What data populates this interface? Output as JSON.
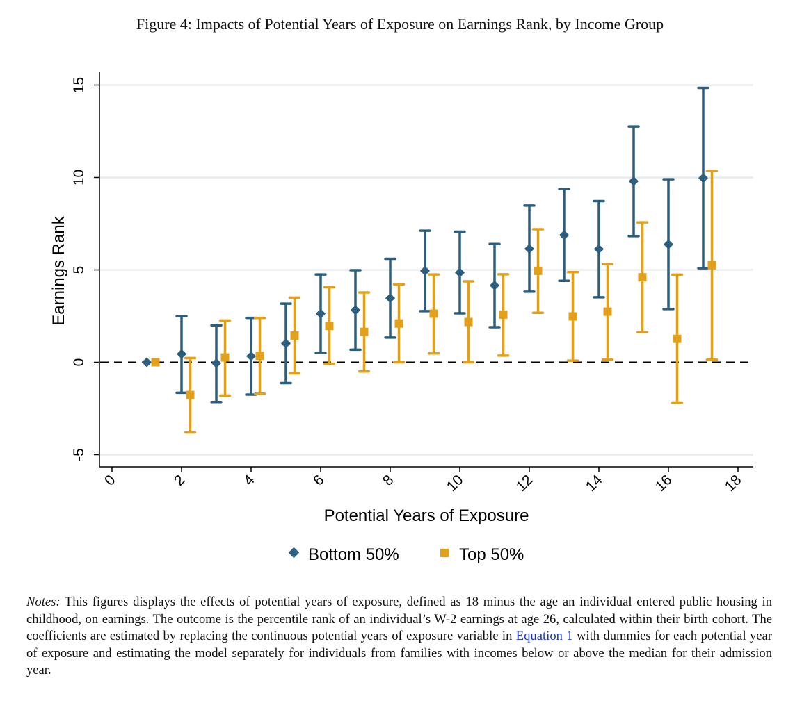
{
  "figure_title": "Figure 4: Impacts of Potential Years of Exposure on Earnings Rank, by Income Group",
  "notes": {
    "label": "Notes:",
    "text_before_link": " This figures displays the effects of potential years of exposure, defined as 18 minus the age an individual entered public housing in childhood, on earnings. The outcome is the percentile rank of an individual’s W-2 earnings at age 26, calculated within their birth cohort. The coefficients are estimated by replacing the continuous potential years of exposure variable in ",
    "link_text": "Equation 1",
    "text_after_link": " with dummies for each potential year of exposure and estimating the model separately for individuals from families with incomes below or above the median for their admission year."
  },
  "chart_data": {
    "type": "scatter",
    "subtype": "coefficient plot with confidence intervals",
    "xlabel": "Potential Years of Exposure",
    "ylabel": "Earnings Rank",
    "xlim": [
      0,
      18
    ],
    "ylim": [
      -5,
      15
    ],
    "xticks": [
      "0",
      "2",
      "4",
      "6",
      "8",
      "10",
      "12",
      "14",
      "16",
      "18"
    ],
    "yticks": [
      "-5",
      "0",
      "5",
      "10",
      "15"
    ],
    "grid": "horizontal",
    "reference_line": {
      "y": 0,
      "style": "dashed"
    },
    "legend_position": "bottom",
    "series": [
      {
        "name": "Bottom 50%",
        "color": "#2c5f7f",
        "marker": "diamond",
        "x": [
          1,
          2,
          3,
          4,
          5,
          6,
          7,
          8,
          9,
          10,
          11,
          12,
          13,
          14,
          15,
          16,
          17
        ],
        "y": [
          0,
          0.45,
          -0.05,
          0.33,
          1.02,
          2.63,
          2.82,
          3.47,
          4.95,
          4.85,
          4.16,
          6.14,
          6.88,
          6.13,
          9.8,
          6.38,
          9.97
        ],
        "ci_low": [
          null,
          -1.65,
          -2.15,
          -1.75,
          -1.13,
          0.5,
          0.68,
          1.34,
          2.77,
          2.65,
          1.9,
          3.82,
          4.41,
          3.52,
          6.83,
          2.88,
          5.09
        ],
        "ci_high": [
          null,
          2.5,
          2.0,
          2.4,
          3.17,
          4.75,
          4.98,
          5.6,
          7.12,
          7.07,
          6.4,
          8.48,
          9.37,
          8.72,
          12.76,
          9.9,
          14.85
        ]
      },
      {
        "name": "Top 50%",
        "color": "#e3a01c",
        "marker": "square",
        "x": [
          1,
          2,
          3,
          4,
          5,
          6,
          7,
          8,
          9,
          10,
          11,
          12,
          13,
          14,
          15,
          16,
          17
        ],
        "y": [
          0,
          -1.77,
          0.26,
          0.35,
          1.45,
          1.97,
          1.65,
          2.1,
          2.63,
          2.18,
          2.58,
          4.95,
          2.48,
          2.74,
          4.6,
          1.27,
          5.25
        ],
        "ci_low": [
          null,
          -3.8,
          -1.8,
          -1.7,
          -0.6,
          -0.08,
          -0.5,
          0.0,
          0.48,
          0.0,
          0.36,
          2.68,
          0.09,
          0.14,
          1.62,
          -2.18,
          0.14
        ],
        "ci_high": [
          null,
          0.23,
          2.26,
          2.4,
          3.5,
          4.06,
          3.78,
          4.22,
          4.75,
          4.38,
          4.76,
          7.2,
          4.88,
          5.31,
          7.57,
          4.74,
          10.35
        ]
      }
    ]
  }
}
